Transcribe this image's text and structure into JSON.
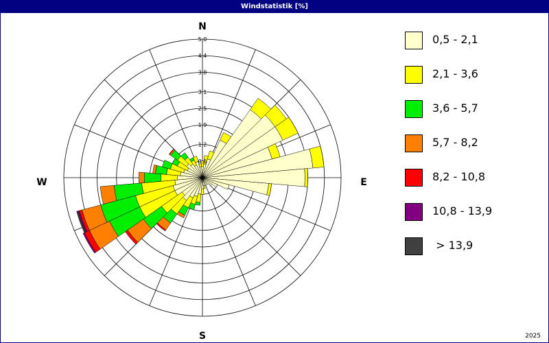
{
  "window": {
    "title": "Windstatistik [%]",
    "year": "2025"
  },
  "chart_data": {
    "type": "wind-rose",
    "title": "Windstatistik [%]",
    "unit": "%",
    "directions": [
      "N",
      "NNE",
      "NE",
      "ENE",
      "E",
      "ESE",
      "SE",
      "SSE",
      "S",
      "SSW",
      "SW",
      "WSW",
      "W",
      "WNW",
      "NW",
      "NNW"
    ],
    "radial_ticks": [
      0.6,
      1.2,
      1.9,
      2.5,
      3.1,
      3.8,
      4.4,
      5.0
    ],
    "radial_tick_labels": [
      "0,6",
      "1,2",
      "1,9",
      "2,5",
      "3,1",
      "3,8",
      "4,4",
      "5,0"
    ],
    "r_max": 5.0,
    "compass": {
      "n": "N",
      "e": "E",
      "s": "S",
      "w": "W"
    },
    "sector_count": 36,
    "legend": [
      {
        "label": "0,5 - 2,1",
        "color": "#ffffcc"
      },
      {
        "label": "2,1 - 3,6",
        "color": "#ffff00"
      },
      {
        "label": "3,6 - 5,7",
        "color": "#00ee00"
      },
      {
        "label": "5,7 - 8,2",
        "color": "#ff8000"
      },
      {
        "label": "8,2 - 10,8",
        "color": "#ff0000"
      },
      {
        "label": "10,8 - 13,9",
        "color": "#800080"
      },
      {
        "label": " > 13,9",
        "color": "#404040"
      }
    ],
    "sectors": [
      {
        "dir_deg": 0,
        "values": [
          0.4,
          0.2,
          0,
          0,
          0,
          0,
          0
        ]
      },
      {
        "dir_deg": 10,
        "values": [
          0.5,
          0.3,
          0,
          0,
          0,
          0,
          0
        ]
      },
      {
        "dir_deg": 20,
        "values": [
          0.7,
          0.3,
          0,
          0,
          0,
          0,
          0
        ]
      },
      {
        "dir_deg": 30,
        "values": [
          1.5,
          0.3,
          0,
          0,
          0,
          0,
          0
        ]
      },
      {
        "dir_deg": 40,
        "values": [
          3.0,
          0.5,
          0,
          0,
          0,
          0,
          0
        ]
      },
      {
        "dir_deg": 50,
        "values": [
          3.2,
          0.5,
          0,
          0,
          0,
          0,
          0
        ]
      },
      {
        "dir_deg": 60,
        "values": [
          3.2,
          0.6,
          0,
          0,
          0,
          0,
          0
        ]
      },
      {
        "dir_deg": 70,
        "values": [
          2.6,
          0.3,
          0,
          0,
          0,
          0,
          0
        ]
      },
      {
        "dir_deg": 80,
        "values": [
          4.0,
          0.4,
          0,
          0,
          0,
          0,
          0
        ]
      },
      {
        "dir_deg": 90,
        "values": [
          3.7,
          0.1,
          0,
          0,
          0,
          0,
          0
        ]
      },
      {
        "dir_deg": 100,
        "values": [
          2.4,
          0.1,
          0,
          0,
          0,
          0,
          0
        ]
      },
      {
        "dir_deg": 110,
        "values": [
          1.0,
          0.0,
          0,
          0,
          0,
          0,
          0
        ]
      },
      {
        "dir_deg": 120,
        "values": [
          0.6,
          0.0,
          0,
          0,
          0,
          0,
          0
        ]
      },
      {
        "dir_deg": 130,
        "values": [
          0.4,
          0.0,
          0,
          0,
          0,
          0,
          0
        ]
      },
      {
        "dir_deg": 140,
        "values": [
          0.3,
          0.0,
          0,
          0,
          0,
          0,
          0
        ]
      },
      {
        "dir_deg": 150,
        "values": [
          0.3,
          0.0,
          0,
          0,
          0,
          0,
          0
        ]
      },
      {
        "dir_deg": 160,
        "values": [
          0.3,
          0.0,
          0,
          0,
          0,
          0,
          0
        ]
      },
      {
        "dir_deg": 170,
        "values": [
          0.3,
          0.1,
          0,
          0,
          0,
          0,
          0
        ]
      },
      {
        "dir_deg": 180,
        "values": [
          0.4,
          0.2,
          0,
          0,
          0,
          0,
          0
        ]
      },
      {
        "dir_deg": 190,
        "values": [
          0.6,
          0.3,
          0.1,
          0,
          0,
          0,
          0
        ]
      },
      {
        "dir_deg": 200,
        "values": [
          0.7,
          0.3,
          0.2,
          0,
          0,
          0,
          0
        ]
      },
      {
        "dir_deg": 210,
        "values": [
          0.8,
          0.4,
          0.3,
          0.1,
          0,
          0,
          0
        ]
      },
      {
        "dir_deg": 220,
        "values": [
          1.0,
          0.6,
          0.4,
          0.3,
          0.05,
          0,
          0
        ]
      },
      {
        "dir_deg": 230,
        "values": [
          0.9,
          0.9,
          0.8,
          0.7,
          0.1,
          0,
          0
        ]
      },
      {
        "dir_deg": 240,
        "values": [
          1.1,
          1.4,
          1.2,
          0.8,
          0.2,
          0.05,
          0
        ]
      },
      {
        "dir_deg": 250,
        "values": [
          1.1,
          1.4,
          1.3,
          0.7,
          0.1,
          0.05,
          0.05
        ]
      },
      {
        "dir_deg": 260,
        "values": [
          1.0,
          1.2,
          1.0,
          0.5,
          0,
          0,
          0
        ]
      },
      {
        "dir_deg": 270,
        "values": [
          0.9,
          0.6,
          0.6,
          0.2,
          0,
          0,
          0
        ]
      },
      {
        "dir_deg": 280,
        "values": [
          0.8,
          0.5,
          0.4,
          0.1,
          0,
          0,
          0
        ]
      },
      {
        "dir_deg": 290,
        "values": [
          0.7,
          0.5,
          0.3,
          0,
          0,
          0,
          0
        ]
      },
      {
        "dir_deg": 300,
        "values": [
          0.6,
          0.4,
          0.2,
          0,
          0,
          0,
          0
        ]
      },
      {
        "dir_deg": 310,
        "values": [
          0.7,
          0.4,
          0.3,
          0.05,
          0.02,
          0,
          0
        ]
      },
      {
        "dir_deg": 320,
        "values": [
          0.6,
          0.3,
          0.2,
          0,
          0,
          0,
          0
        ]
      },
      {
        "dir_deg": 330,
        "values": [
          0.5,
          0.2,
          0.1,
          0,
          0,
          0,
          0
        ]
      },
      {
        "dir_deg": 340,
        "values": [
          0.6,
          0.2,
          0,
          0,
          0,
          0,
          0
        ]
      },
      {
        "dir_deg": 350,
        "values": [
          0.4,
          0.1,
          0,
          0,
          0,
          0,
          0
        ]
      }
    ]
  }
}
